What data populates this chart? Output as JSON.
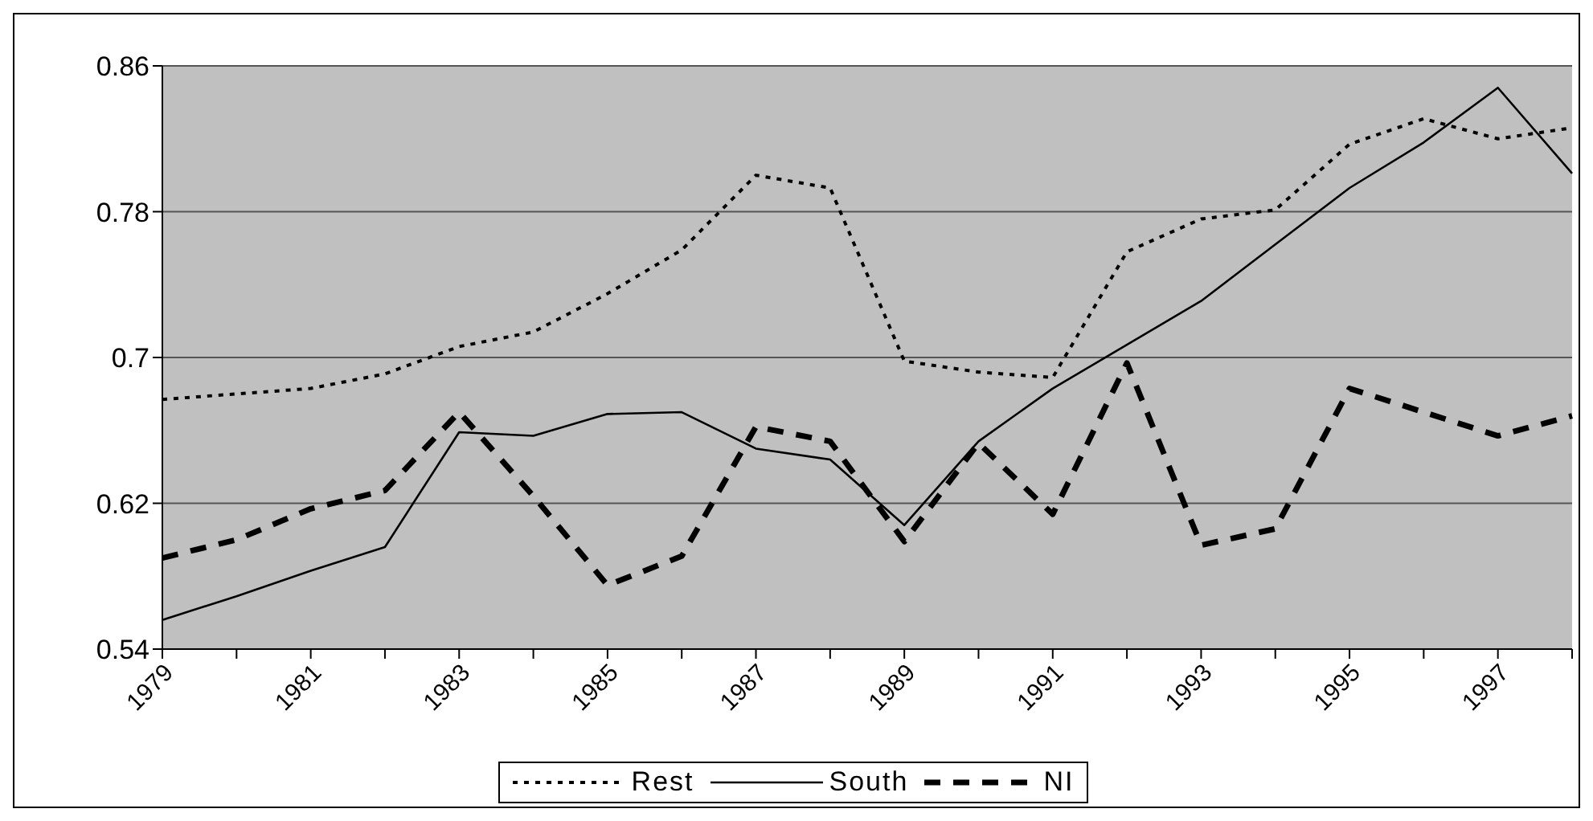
{
  "chart_data": {
    "type": "line",
    "categories": [
      "1979",
      null,
      "1981",
      null,
      "1983",
      null,
      "1985",
      null,
      "1987",
      null,
      "1989",
      null,
      "1991",
      null,
      "1993",
      null,
      "1995",
      null,
      "1997",
      null
    ],
    "series": [
      {
        "name": "Rest",
        "color": "#000000",
        "line_style": "dotted",
        "values": [
          0.677,
          0.68,
          0.683,
          0.691,
          0.706,
          0.714,
          0.735,
          0.759,
          0.8,
          0.793,
          0.698,
          0.692,
          0.689,
          0.758,
          0.776,
          0.781,
          0.817,
          0.831,
          0.82,
          0.826
        ]
      },
      {
        "name": "South",
        "color": "#000000",
        "line_style": "solid",
        "values": [
          0.556,
          0.569,
          0.583,
          0.596,
          0.659,
          0.657,
          0.669,
          0.67,
          0.65,
          0.644,
          0.608,
          0.654,
          0.683,
          0.707,
          0.731,
          0.762,
          0.793,
          0.818,
          0.848,
          0.801
        ]
      },
      {
        "name": "NI",
        "color": "#000000",
        "line_style": "dashed",
        "values": [
          0.59,
          0.6,
          0.617,
          0.627,
          0.67,
          0.624,
          0.575,
          0.591,
          0.662,
          0.654,
          0.599,
          0.653,
          0.614,
          0.697,
          0.597,
          0.606,
          0.683,
          0.67,
          0.657,
          0.668
        ]
      }
    ],
    "ylim": [
      0.54,
      0.86
    ],
    "yticks": [
      0.54,
      0.62,
      0.7,
      0.78,
      0.86
    ],
    "grid": "y",
    "legend": "bottom",
    "marker": "none"
  }
}
